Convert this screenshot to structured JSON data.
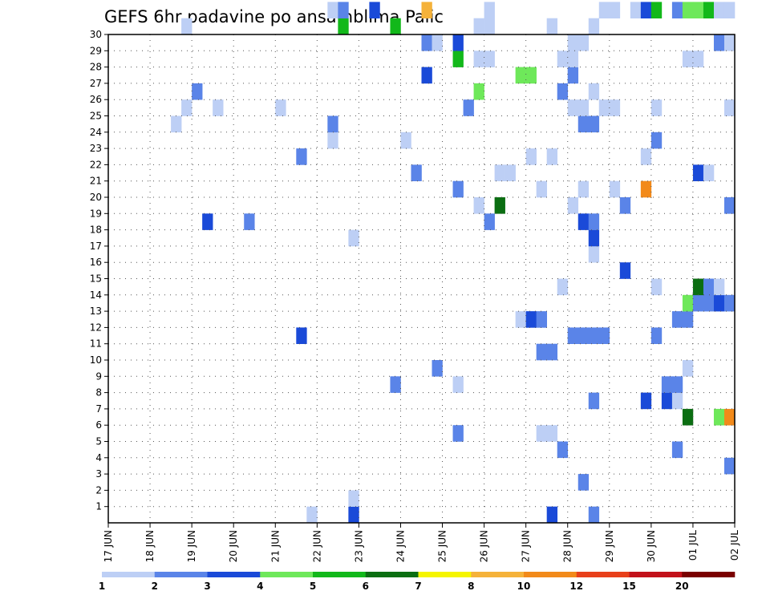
{
  "chart_data": {
    "type": "heatmap",
    "title": "GEFS 6hr padavine po ansamblima Palic",
    "xlabel": "",
    "ylabel": "",
    "x_tick_labels": [
      "17 JUN",
      "18 JUN",
      "19 JUN",
      "20 JUN",
      "21 JUN",
      "22 JUN",
      "23 JUN",
      "24 JUN",
      "25 JUN",
      "26 JUN",
      "27 JUN",
      "28 JUN",
      "29 JUN",
      "30 JUN",
      "01 JUL",
      "02 JUL"
    ],
    "y_tick_labels": [
      "1",
      "2",
      "3",
      "4",
      "5",
      "6",
      "7",
      "8",
      "9",
      "10",
      "11",
      "12",
      "13",
      "14",
      "15",
      "16",
      "17",
      "18",
      "19",
      "20",
      "21",
      "22",
      "23",
      "24",
      "25",
      "26",
      "27",
      "28",
      "29",
      "30"
    ],
    "x_range_steps": [
      0,
      60
    ],
    "y_range_members": [
      0,
      30
    ],
    "grid": true,
    "legend": {
      "placement": "bottom",
      "labels": [
        "1",
        "2",
        "3",
        "4",
        "5",
        "6",
        "7",
        "8",
        "10",
        "12",
        "15",
        "20"
      ],
      "colors": [
        "#bdcff5",
        "#5a84e8",
        "#1a4ad8",
        "#6ee85a",
        "#12b81a",
        "#0b6e12",
        "#f5f500",
        "#f5b23a",
        "#f28a1a",
        "#e8401a",
        "#c2121a",
        "#7a0000"
      ]
    },
    "cells": [
      [
        24,
        1,
        "#1a4ad8"
      ],
      [
        20,
        1,
        "#bdcff5"
      ],
      [
        24,
        2,
        "#bdcff5"
      ],
      [
        43,
        1,
        "#1a4ad8"
      ],
      [
        47,
        1,
        "#5a84e8"
      ],
      [
        46,
        3,
        "#5a84e8"
      ],
      [
        60,
        4,
        "#5a84e8"
      ],
      [
        44,
        5,
        "#5a84e8"
      ],
      [
        55,
        5,
        "#5a84e8"
      ],
      [
        34,
        6,
        "#5a84e8"
      ],
      [
        42,
        6,
        "#bdcff5"
      ],
      [
        43,
        6,
        "#bdcff5"
      ],
      [
        56,
        7,
        "#0b6e12"
      ],
      [
        59,
        7,
        "#6ee85a"
      ],
      [
        60,
        7,
        "#f28a1a"
      ],
      [
        47,
        8,
        "#5a84e8"
      ],
      [
        52,
        8,
        "#1a4ad8"
      ],
      [
        54,
        8,
        "#1a4ad8"
      ],
      [
        55,
        8,
        "#bdcff5"
      ],
      [
        28,
        9,
        "#5a84e8"
      ],
      [
        34,
        9,
        "#bdcff5"
      ],
      [
        54,
        9,
        "#5a84e8"
      ],
      [
        55,
        9,
        "#5a84e8"
      ],
      [
        32,
        10,
        "#5a84e8"
      ],
      [
        56,
        10,
        "#bdcff5"
      ],
      [
        42,
        11,
        "#5a84e8"
      ],
      [
        43,
        11,
        "#5a84e8"
      ],
      [
        19,
        12,
        "#1a4ad8"
      ],
      [
        45,
        12,
        "#5a84e8"
      ],
      [
        46,
        12,
        "#5a84e8"
      ],
      [
        47,
        12,
        "#5a84e8"
      ],
      [
        48,
        12,
        "#5a84e8"
      ],
      [
        53,
        12,
        "#5a84e8"
      ],
      [
        40,
        13,
        "#bdcff5"
      ],
      [
        41,
        13,
        "#1a4ad8"
      ],
      [
        42,
        13,
        "#5a84e8"
      ],
      [
        55,
        13,
        "#5a84e8"
      ],
      [
        56,
        13,
        "#5a84e8"
      ],
      [
        56,
        14,
        "#6ee85a"
      ],
      [
        57,
        14,
        "#5a84e8"
      ],
      [
        58,
        14,
        "#5a84e8"
      ],
      [
        59,
        14,
        "#1a4ad8"
      ],
      [
        60,
        14,
        "#5a84e8"
      ],
      [
        44,
        15,
        "#bdcff5"
      ],
      [
        53,
        15,
        "#bdcff5"
      ],
      [
        57,
        15,
        "#0b6e12"
      ],
      [
        58,
        15,
        "#5a84e8"
      ],
      [
        59,
        15,
        "#bdcff5"
      ],
      [
        50,
        16,
        "#1a4ad8"
      ],
      [
        47,
        17,
        "#bdcff5"
      ],
      [
        24,
        18,
        "#bdcff5"
      ],
      [
        47,
        18,
        "#1a4ad8"
      ],
      [
        10,
        19,
        "#1a4ad8"
      ],
      [
        14,
        19,
        "#5a84e8"
      ],
      [
        37,
        19,
        "#5a84e8"
      ],
      [
        46,
        19,
        "#1a4ad8"
      ],
      [
        47,
        19,
        "#5a84e8"
      ],
      [
        36,
        20,
        "#bdcff5"
      ],
      [
        38,
        20,
        "#0b6e12"
      ],
      [
        45,
        20,
        "#bdcff5"
      ],
      [
        50,
        20,
        "#5a84e8"
      ],
      [
        60,
        20,
        "#5a84e8"
      ],
      [
        34,
        21,
        "#5a84e8"
      ],
      [
        42,
        21,
        "#bdcff5"
      ],
      [
        46,
        21,
        "#bdcff5"
      ],
      [
        49,
        21,
        "#bdcff5"
      ],
      [
        52,
        21,
        "#f28a1a"
      ],
      [
        30,
        22,
        "#5a84e8"
      ],
      [
        38,
        22,
        "#bdcff5"
      ],
      [
        39,
        22,
        "#bdcff5"
      ],
      [
        57,
        22,
        "#1a4ad8"
      ],
      [
        58,
        22,
        "#bdcff5"
      ],
      [
        19,
        23,
        "#5a84e8"
      ],
      [
        41,
        23,
        "#bdcff5"
      ],
      [
        43,
        23,
        "#bdcff5"
      ],
      [
        52,
        23,
        "#bdcff5"
      ],
      [
        22,
        24,
        "#bdcff5"
      ],
      [
        29,
        24,
        "#bdcff5"
      ],
      [
        53,
        24,
        "#5a84e8"
      ],
      [
        7,
        25,
        "#bdcff5"
      ],
      [
        22,
        25,
        "#5a84e8"
      ],
      [
        46,
        25,
        "#5a84e8"
      ],
      [
        47,
        25,
        "#5a84e8"
      ],
      [
        8,
        26,
        "#bdcff5"
      ],
      [
        11,
        26,
        "#bdcff5"
      ],
      [
        17,
        26,
        "#bdcff5"
      ],
      [
        35,
        26,
        "#5a84e8"
      ],
      [
        45,
        26,
        "#bdcff5"
      ],
      [
        46,
        26,
        "#bdcff5"
      ],
      [
        48,
        26,
        "#bdcff5"
      ],
      [
        49,
        26,
        "#bdcff5"
      ],
      [
        53,
        26,
        "#bdcff5"
      ],
      [
        60,
        26,
        "#bdcff5"
      ],
      [
        9,
        27,
        "#5a84e8"
      ],
      [
        36,
        27,
        "#6ee85a"
      ],
      [
        44,
        27,
        "#5a84e8"
      ],
      [
        47,
        27,
        "#bdcff5"
      ],
      [
        31,
        28,
        "#1a4ad8"
      ],
      [
        40,
        28,
        "#6ee85a"
      ],
      [
        41,
        28,
        "#6ee85a"
      ],
      [
        45,
        28,
        "#5a84e8"
      ],
      [
        34,
        29,
        "#12b81a"
      ],
      [
        36,
        29,
        "#bdcff5"
      ],
      [
        37,
        29,
        "#bdcff5"
      ],
      [
        44,
        29,
        "#bdcff5"
      ],
      [
        45,
        29,
        "#bdcff5"
      ],
      [
        56,
        29,
        "#bdcff5"
      ],
      [
        57,
        29,
        "#bdcff5"
      ],
      [
        31,
        30,
        "#5a84e8"
      ],
      [
        32,
        30,
        "#bdcff5"
      ],
      [
        34,
        30,
        "#1a4ad8"
      ],
      [
        45,
        30,
        "#bdcff5"
      ],
      [
        46,
        30,
        "#bdcff5"
      ],
      [
        59,
        30,
        "#5a84e8"
      ],
      [
        60,
        30,
        "#bdcff5"
      ],
      [
        8,
        31,
        "#bdcff5"
      ],
      [
        23,
        31,
        "#12b81a"
      ],
      [
        28,
        31,
        "#12b81a"
      ],
      [
        36,
        31,
        "#bdcff5"
      ],
      [
        37,
        31,
        "#bdcff5"
      ],
      [
        43,
        31,
        "#bdcff5"
      ],
      [
        47,
        31,
        "#bdcff5"
      ],
      [
        22,
        32,
        "#bdcff5"
      ],
      [
        23,
        32,
        "#5a84e8"
      ],
      [
        26,
        32,
        "#1a4ad8"
      ],
      [
        31,
        32,
        "#f5b23a"
      ],
      [
        37,
        32,
        "#bdcff5"
      ],
      [
        48,
        32,
        "#bdcff5"
      ],
      [
        49,
        32,
        "#bdcff5"
      ],
      [
        51,
        32,
        "#bdcff5"
      ],
      [
        52,
        32,
        "#1a4ad8"
      ],
      [
        53,
        32,
        "#12b81a"
      ],
      [
        55,
        32,
        "#5a84e8"
      ],
      [
        56,
        32,
        "#6ee85a"
      ],
      [
        57,
        32,
        "#6ee85a"
      ],
      [
        58,
        32,
        "#12b81a"
      ],
      [
        59,
        32,
        "#bdcff5"
      ],
      [
        60,
        32,
        "#bdcff5"
      ]
    ]
  }
}
